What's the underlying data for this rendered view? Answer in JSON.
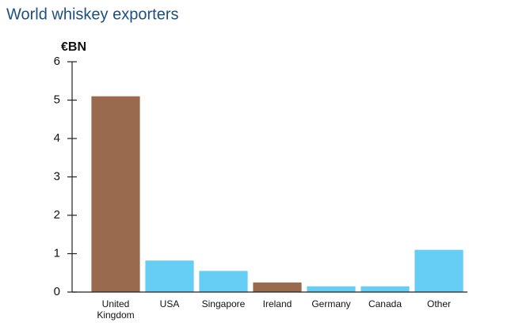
{
  "chart_data": {
    "type": "bar",
    "title": "World whiskey exporters",
    "y_label": "€BN",
    "categories": [
      "United Kingdom",
      "USA",
      "Singapore",
      "Ireland",
      "Germany",
      "Canada",
      "Other"
    ],
    "values": [
      5.1,
      0.82,
      0.55,
      0.25,
      0.15,
      0.15,
      1.1
    ],
    "colors": [
      "#9a6a4e",
      "#66cdf4",
      "#66cdf4",
      "#9a6a4e",
      "#66cdf4",
      "#66cdf4",
      "#66cdf4"
    ],
    "ylim": [
      0,
      6
    ],
    "yticks": [
      0,
      1,
      2,
      3,
      4,
      5,
      6
    ],
    "grid": false
  }
}
